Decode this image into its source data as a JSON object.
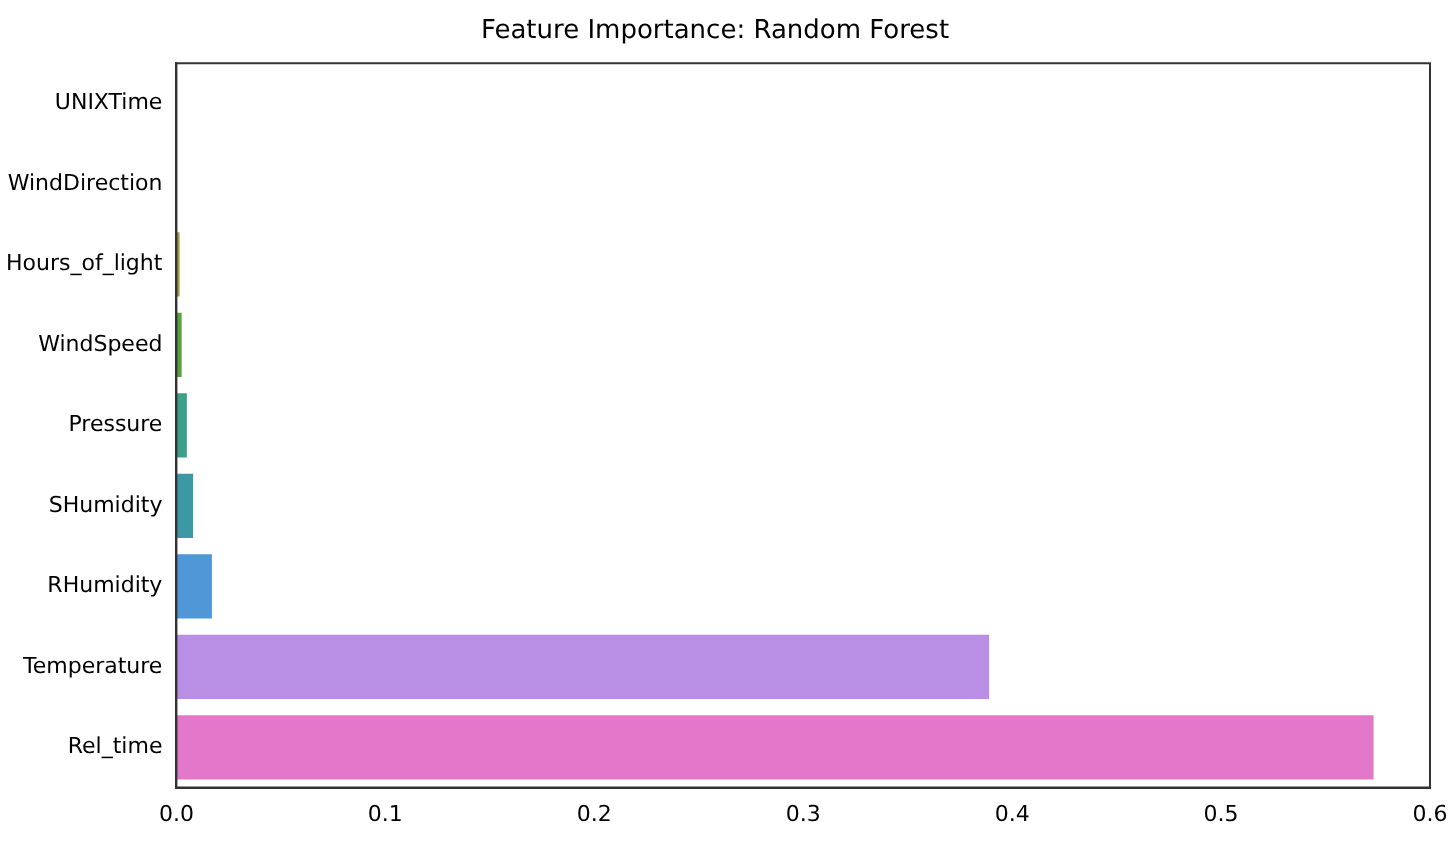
{
  "chart_data": {
    "type": "bar",
    "orientation": "horizontal",
    "title": "Feature Importance: Random Forest",
    "categories": [
      "UNIXTime",
      "WindDirection",
      "Hours_of_light",
      "WindSpeed",
      "Pressure",
      "SHumidity",
      "RHumidity",
      "Temperature",
      "Rel_time"
    ],
    "values": [
      0,
      0,
      0.0015,
      0.0025,
      0.005,
      0.008,
      0.017,
      0.389,
      0.573
    ],
    "colors": [
      "#e16f84",
      "#c08a3e",
      "#9e9a3c",
      "#58a13c",
      "#3c9f89",
      "#3c98a3",
      "#4f97d6",
      "#b98fe5",
      "#e377c9"
    ],
    "xlim": [
      0,
      0.6
    ],
    "xticks": [
      {
        "value": 0,
        "label": "0.0"
      },
      {
        "value": 0.1,
        "label": "0.1"
      },
      {
        "value": 0.2,
        "label": "0.2"
      },
      {
        "value": 0.3,
        "label": "0.3"
      },
      {
        "value": 0.4,
        "label": "0.4"
      },
      {
        "value": 0.5,
        "label": "0.5"
      },
      {
        "value": 0.6,
        "label": "0.6"
      }
    ],
    "grid": false,
    "legend": false
  }
}
